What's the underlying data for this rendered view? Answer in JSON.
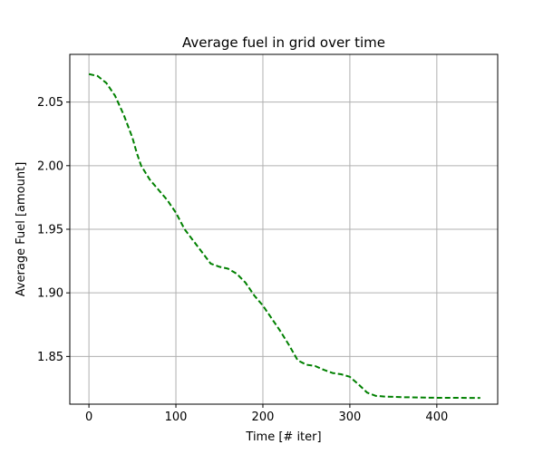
{
  "chart_data": {
    "type": "line",
    "title": "Average fuel in grid over time",
    "xlabel": "Time [# iter]",
    "ylabel": "Average Fuel [amount]",
    "xlim": [
      -22,
      470
    ],
    "ylim": [
      1.8125,
      2.0875
    ],
    "xticks": [
      0,
      100,
      200,
      300,
      400
    ],
    "yticks": [
      1.85,
      1.9,
      1.95,
      2.0,
      2.05
    ],
    "xtick_labels": [
      "0",
      "100",
      "200",
      "300",
      "400"
    ],
    "ytick_labels": [
      "1.85",
      "1.90",
      "1.95",
      "2.00",
      "2.05"
    ],
    "grid": true,
    "series": [
      {
        "color": "#008000",
        "line_style": "dashed",
        "x": [
          0,
          10,
          20,
          30,
          40,
          50,
          55,
          60,
          70,
          80,
          90,
          100,
          110,
          120,
          130,
          140,
          150,
          160,
          170,
          180,
          190,
          200,
          210,
          220,
          230,
          240,
          250,
          260,
          270,
          280,
          290,
          300,
          310,
          320,
          330,
          340,
          360,
          400,
          450
        ],
        "y": [
          2.072,
          2.0705,
          2.065,
          2.055,
          2.04,
          2.022,
          2.01,
          2.0,
          1.989,
          1.981,
          1.973,
          1.963,
          1.95,
          1.941,
          1.932,
          1.923,
          1.9205,
          1.919,
          1.915,
          1.908,
          1.898,
          1.89,
          1.88,
          1.87,
          1.859,
          1.847,
          1.8435,
          1.8425,
          1.8395,
          1.837,
          1.836,
          1.834,
          1.828,
          1.8215,
          1.819,
          1.8185,
          1.818,
          1.8175,
          1.8174
        ]
      }
    ]
  }
}
